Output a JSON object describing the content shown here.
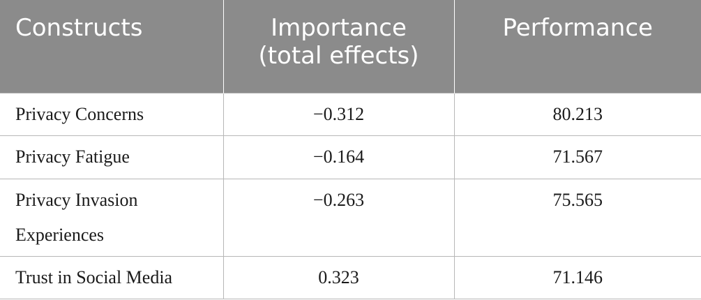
{
  "table": {
    "headers": {
      "constructs": "Constructs",
      "importance_line1": "Importance",
      "importance_line2": "(total effects)",
      "performance": "Performance"
    },
    "rows": [
      {
        "construct_line1": "Privacy Concerns",
        "construct_line2": "",
        "importance": "−0.312",
        "performance": "80.213"
      },
      {
        "construct_line1": "Privacy Fatigue",
        "construct_line2": "",
        "importance": "−0.164",
        "performance": "71.567"
      },
      {
        "construct_line1": "Privacy Invasion",
        "construct_line2": "Experiences",
        "importance": "−0.263",
        "performance": "75.565"
      },
      {
        "construct_line1": "Trust in Social Media",
        "construct_line2": "",
        "importance": "0.323",
        "performance": "71.146"
      }
    ]
  }
}
